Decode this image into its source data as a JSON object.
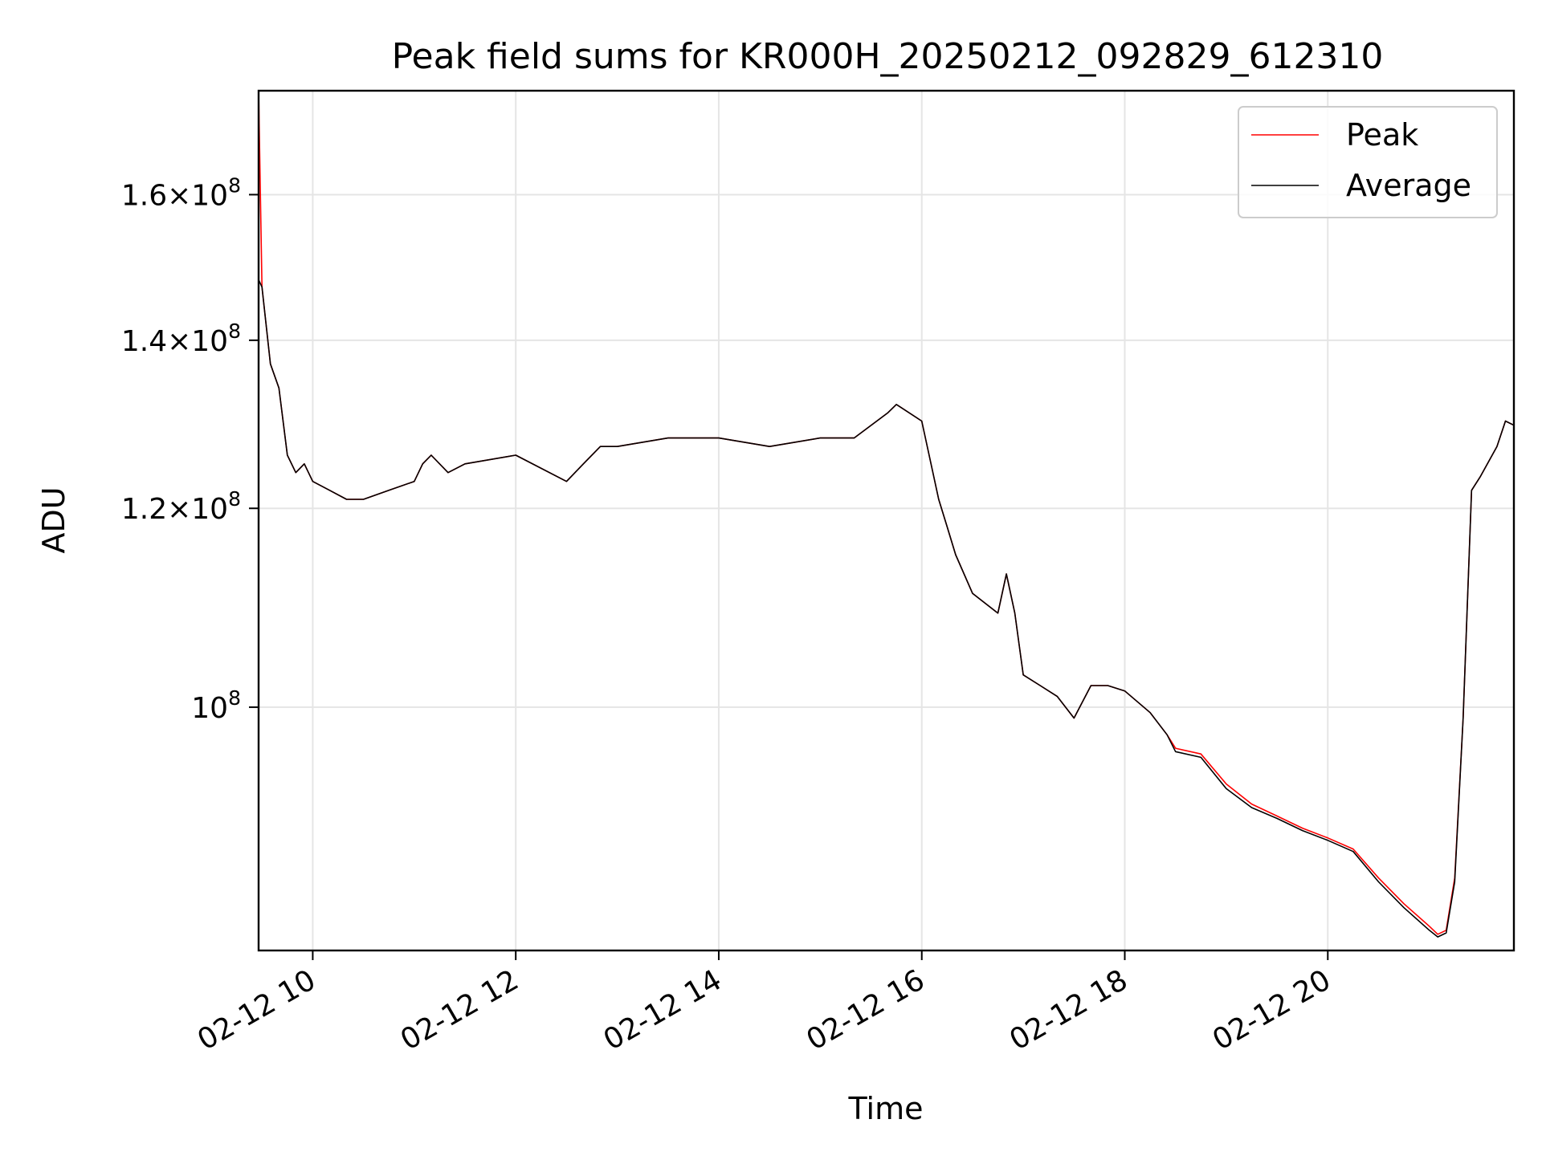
{
  "chart_data": {
    "type": "line",
    "title": "Peak field sums for KR000H_20250212_092829_612310",
    "xlabel": "Time",
    "ylabel": "ADU",
    "yscale": "log",
    "xlim": [
      "2025-02-12 09:28",
      "2025-02-12 21:50"
    ],
    "ylim": [
      80000000.0,
      176000000.0
    ],
    "grid": true,
    "legend_position": "upper right",
    "x_tick_labels": [
      "02-12 10",
      "02-12 12",
      "02-12 14",
      "02-12 16",
      "02-12 18",
      "02-12 20"
    ],
    "x_ticks": [
      "2025-02-12 10:00",
      "2025-02-12 12:00",
      "2025-02-12 14:00",
      "2025-02-12 16:00",
      "2025-02-12 18:00",
      "2025-02-12 20:00"
    ],
    "y_ticks": [
      {
        "value": 100000000.0,
        "mantissa": "",
        "exp": "8"
      },
      {
        "value": 120000000.0,
        "mantissa": "1.2",
        "exp": "8"
      },
      {
        "value": 140000000.0,
        "mantissa": "1.4",
        "exp": "8"
      },
      {
        "value": 160000000.0,
        "mantissa": "1.6",
        "exp": "8"
      }
    ],
    "x": [
      "2025-02-12 09:28",
      "2025-02-12 09:30",
      "2025-02-12 09:35",
      "2025-02-12 09:40",
      "2025-02-12 09:45",
      "2025-02-12 09:50",
      "2025-02-12 09:55",
      "2025-02-12 10:00",
      "2025-02-12 10:10",
      "2025-02-12 10:20",
      "2025-02-12 10:30",
      "2025-02-12 10:45",
      "2025-02-12 11:00",
      "2025-02-12 11:05",
      "2025-02-12 11:10",
      "2025-02-12 11:20",
      "2025-02-12 11:30",
      "2025-02-12 12:00",
      "2025-02-12 12:30",
      "2025-02-12 12:40",
      "2025-02-12 12:50",
      "2025-02-12 13:00",
      "2025-02-12 13:30",
      "2025-02-12 14:00",
      "2025-02-12 14:30",
      "2025-02-12 15:00",
      "2025-02-12 15:20",
      "2025-02-12 15:40",
      "2025-02-12 15:45",
      "2025-02-12 16:00",
      "2025-02-12 16:10",
      "2025-02-12 16:15",
      "2025-02-12 16:20",
      "2025-02-12 16:30",
      "2025-02-12 16:45",
      "2025-02-12 16:50",
      "2025-02-12 16:55",
      "2025-02-12 17:00",
      "2025-02-12 17:10",
      "2025-02-12 17:20",
      "2025-02-12 17:30",
      "2025-02-12 17:40",
      "2025-02-12 17:50",
      "2025-02-12 18:00",
      "2025-02-12 18:15",
      "2025-02-12 18:25",
      "2025-02-12 18:30",
      "2025-02-12 18:45",
      "2025-02-12 19:00",
      "2025-02-12 19:15",
      "2025-02-12 19:30",
      "2025-02-12 19:45",
      "2025-02-12 20:00",
      "2025-02-12 20:15",
      "2025-02-12 20:30",
      "2025-02-12 20:45",
      "2025-02-12 21:00",
      "2025-02-12 21:05",
      "2025-02-12 21:10",
      "2025-02-12 21:15",
      "2025-02-12 21:20",
      "2025-02-12 21:25",
      "2025-02-12 21:30",
      "2025-02-12 21:40",
      "2025-02-12 21:45",
      "2025-02-12 21:50"
    ],
    "series": [
      {
        "name": "Peak",
        "color": "#ff0000",
        "values": [
          176000000.0,
          147000000.0,
          137000000.0,
          134000000.0,
          126000000.0,
          124000000.0,
          125000000.0,
          123000000.0,
          122000000.0,
          121000000.0,
          121000000.0,
          122000000.0,
          123000000.0,
          125000000.0,
          126000000.0,
          124000000.0,
          125000000.0,
          126000000.0,
          123000000.0,
          125000000.0,
          127000000.0,
          127000000.0,
          128000000.0,
          128000000.0,
          127000000.0,
          128000000.0,
          128000000.0,
          131000000.0,
          132000000.0,
          130000000.0,
          121000000.0,
          118000000.0,
          115000000.0,
          111000000.0,
          109000000.0,
          113000000.0,
          109000000.0,
          103000000.0,
          102000000.0,
          101000000.0,
          99000000.0,
          102000000.0,
          102000000.0,
          101500000.0,
          99500000.0,
          97500000.0,
          96300000.0,
          95800000.0,
          93200000.0,
          91500000.0,
          90500000.0,
          89500000.0,
          88700000.0,
          87800000.0,
          85500000.0,
          83500000.0,
          81800000.0,
          81200000.0,
          81500000.0,
          85500000.0,
          99000000.0,
          122000000.0,
          123500000.0,
          127000000.0,
          130000000.0,
          129500000.0
        ]
      },
      {
        "name": "Average",
        "color": "#000000",
        "values": [
          148000000.0,
          147000000.0,
          137000000.0,
          134000000.0,
          126000000.0,
          124000000.0,
          125000000.0,
          123000000.0,
          122000000.0,
          121000000.0,
          121000000.0,
          122000000.0,
          123000000.0,
          125000000.0,
          126000000.0,
          124000000.0,
          125000000.0,
          126000000.0,
          123000000.0,
          125000000.0,
          127000000.0,
          127000000.0,
          128000000.0,
          128000000.0,
          127000000.0,
          128000000.0,
          128000000.0,
          131000000.0,
          132000000.0,
          130000000.0,
          121000000.0,
          118000000.0,
          115000000.0,
          111000000.0,
          109000000.0,
          113000000.0,
          109000000.0,
          103000000.0,
          102000000.0,
          101000000.0,
          99000000.0,
          102000000.0,
          102000000.0,
          101500000.0,
          99500000.0,
          97500000.0,
          96000000.0,
          95500000.0,
          92800000.0,
          91200000.0,
          90300000.0,
          89300000.0,
          88500000.0,
          87600000.0,
          85200000.0,
          83200000.0,
          81500000.0,
          81000000.0,
          81300000.0,
          85200000.0,
          99000000.0,
          122000000.0,
          123500000.0,
          127000000.0,
          130000000.0,
          129500000.0
        ]
      }
    ]
  }
}
